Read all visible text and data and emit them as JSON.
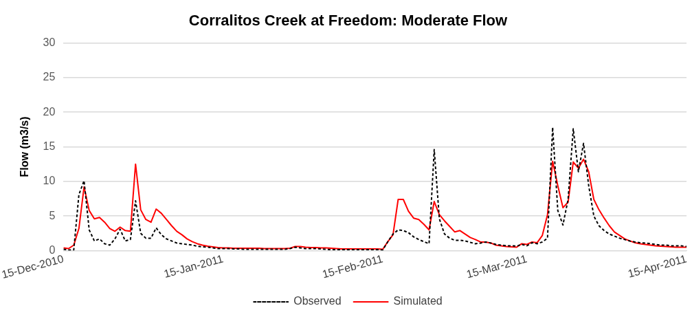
{
  "chart_data": {
    "type": "line",
    "title": "Corralitos Creek at Freedom: Moderate Flow",
    "ylabel": "Flow (m3/s)",
    "x": [
      "2010-12-15",
      "2010-12-16",
      "2010-12-17",
      "2010-12-18",
      "2010-12-19",
      "2010-12-20",
      "2010-12-21",
      "2010-12-22",
      "2010-12-23",
      "2010-12-24",
      "2010-12-25",
      "2010-12-26",
      "2010-12-27",
      "2010-12-28",
      "2010-12-29",
      "2010-12-30",
      "2010-12-31",
      "2011-01-01",
      "2011-01-02",
      "2011-01-03",
      "2011-01-04",
      "2011-01-05",
      "2011-01-06",
      "2011-01-07",
      "2011-01-08",
      "2011-01-09",
      "2011-01-10",
      "2011-01-11",
      "2011-01-12",
      "2011-01-13",
      "2011-01-14",
      "2011-01-15",
      "2011-01-16",
      "2011-01-17",
      "2011-01-18",
      "2011-01-19",
      "2011-01-20",
      "2011-01-21",
      "2011-01-22",
      "2011-01-23",
      "2011-01-24",
      "2011-01-25",
      "2011-01-26",
      "2011-01-27",
      "2011-01-28",
      "2011-01-29",
      "2011-01-30",
      "2011-01-31",
      "2011-02-01",
      "2011-02-02",
      "2011-02-03",
      "2011-02-04",
      "2011-02-05",
      "2011-02-06",
      "2011-02-07",
      "2011-02-08",
      "2011-02-09",
      "2011-02-10",
      "2011-02-11",
      "2011-02-12",
      "2011-02-13",
      "2011-02-14",
      "2011-02-15",
      "2011-02-16",
      "2011-02-17",
      "2011-02-18",
      "2011-02-19",
      "2011-02-20",
      "2011-02-21",
      "2011-02-22",
      "2011-02-23",
      "2011-02-24",
      "2011-02-25",
      "2011-02-26",
      "2011-02-27",
      "2011-02-28",
      "2011-03-01",
      "2011-03-02",
      "2011-03-03",
      "2011-03-04",
      "2011-03-05",
      "2011-03-06",
      "2011-03-07",
      "2011-03-08",
      "2011-03-09",
      "2011-03-10",
      "2011-03-11",
      "2011-03-12",
      "2011-03-13",
      "2011-03-14",
      "2011-03-15",
      "2011-03-16",
      "2011-03-17",
      "2011-03-18",
      "2011-03-19",
      "2011-03-20",
      "2011-03-21",
      "2011-03-22",
      "2011-03-23",
      "2011-03-24",
      "2011-03-25",
      "2011-03-26",
      "2011-03-27",
      "2011-03-28",
      "2011-03-29",
      "2011-03-30",
      "2011-03-31",
      "2011-04-01",
      "2011-04-02",
      "2011-04-03",
      "2011-04-04",
      "2011-04-05",
      "2011-04-06",
      "2011-04-07",
      "2011-04-08",
      "2011-04-09",
      "2011-04-10",
      "2011-04-11",
      "2011-04-12",
      "2011-04-13",
      "2011-04-14",
      "2011-04-15"
    ],
    "series": [
      {
        "name": "Observed",
        "color": "#000000",
        "line_style": "dashed",
        "values": [
          0.2,
          0.1,
          0.1,
          8.1,
          10.1,
          3.0,
          1.4,
          1.7,
          1.0,
          0.8,
          1.7,
          3.1,
          1.4,
          1.6,
          7.2,
          2.5,
          1.8,
          1.8,
          3.3,
          2.3,
          1.7,
          1.4,
          1.1,
          1.0,
          0.9,
          0.8,
          0.65,
          0.55,
          0.5,
          0.4,
          0.3,
          0.3,
          0.3,
          0.25,
          0.25,
          0.2,
          0.2,
          0.2,
          0.2,
          0.2,
          0.2,
          0.2,
          0.2,
          0.2,
          0.3,
          0.5,
          0.4,
          0.3,
          0.3,
          0.3,
          0.25,
          0.2,
          0.15,
          0.15,
          0.15,
          0.15,
          0.15,
          0.15,
          0.15,
          0.15,
          0.15,
          0.15,
          0.1,
          1.3,
          2.4,
          3.0,
          2.9,
          2.6,
          2.0,
          1.6,
          1.3,
          1.0,
          14.6,
          4.6,
          2.4,
          1.8,
          1.5,
          1.5,
          1.4,
          1.2,
          1.0,
          1.1,
          1.25,
          1.1,
          0.9,
          0.8,
          0.7,
          0.7,
          0.65,
          0.9,
          0.7,
          1.15,
          1.0,
          1.25,
          1.8,
          17.8,
          5.8,
          3.7,
          7.4,
          17.6,
          11.4,
          15.5,
          9.4,
          5.0,
          3.6,
          2.9,
          2.4,
          2.1,
          1.8,
          1.6,
          1.4,
          1.25,
          1.15,
          1.1,
          1.0,
          0.9,
          0.8,
          0.8,
          0.7,
          0.7,
          0.7,
          0.6
        ]
      },
      {
        "name": "Simulated",
        "color": "#ff0000",
        "line_style": "solid",
        "values": [
          0.4,
          0.3,
          0.8,
          3.2,
          9.2,
          5.8,
          4.6,
          4.8,
          4.1,
          3.2,
          2.8,
          3.4,
          2.9,
          2.8,
          12.5,
          5.9,
          4.5,
          4.1,
          6.0,
          5.4,
          4.5,
          3.6,
          2.8,
          2.3,
          1.7,
          1.3,
          1.0,
          0.8,
          0.65,
          0.55,
          0.45,
          0.4,
          0.4,
          0.35,
          0.35,
          0.35,
          0.35,
          0.35,
          0.35,
          0.3,
          0.3,
          0.3,
          0.3,
          0.3,
          0.35,
          0.6,
          0.6,
          0.5,
          0.45,
          0.45,
          0.4,
          0.4,
          0.35,
          0.3,
          0.25,
          0.25,
          0.25,
          0.25,
          0.25,
          0.25,
          0.25,
          0.25,
          0.2,
          1.3,
          2.3,
          7.4,
          7.4,
          5.7,
          4.7,
          4.5,
          3.8,
          3.0,
          7.1,
          5.2,
          4.3,
          3.5,
          2.7,
          2.9,
          2.4,
          1.9,
          1.6,
          1.25,
          1.25,
          1.1,
          0.8,
          0.7,
          0.6,
          0.55,
          0.5,
          1.0,
          0.9,
          1.25,
          1.15,
          2.2,
          5.2,
          12.9,
          9.4,
          6.2,
          7.0,
          12.8,
          11.9,
          13.2,
          11.4,
          7.4,
          5.9,
          4.7,
          3.6,
          2.7,
          2.2,
          1.7,
          1.4,
          1.15,
          1.0,
          0.9,
          0.8,
          0.7,
          0.65,
          0.6,
          0.55,
          0.5,
          0.5,
          0.5
        ]
      }
    ],
    "xlim": [
      "2010-12-15",
      "2011-04-15"
    ],
    "xticks": [
      {
        "value": "2010-12-15",
        "label": "15-Dec-2010"
      },
      {
        "value": "2011-01-15",
        "label": "15-Jan-2011"
      },
      {
        "value": "2011-02-15",
        "label": "15-Feb-2011"
      },
      {
        "value": "2011-03-15",
        "label": "15-Mar-2011"
      },
      {
        "value": "2011-04-15",
        "label": "15-Apr-2011"
      }
    ],
    "ylim": [
      0,
      30
    ],
    "yticks": [
      0,
      5,
      10,
      15,
      20,
      25,
      30
    ],
    "grid": "y",
    "legend": "bottom",
    "marker": "none"
  }
}
